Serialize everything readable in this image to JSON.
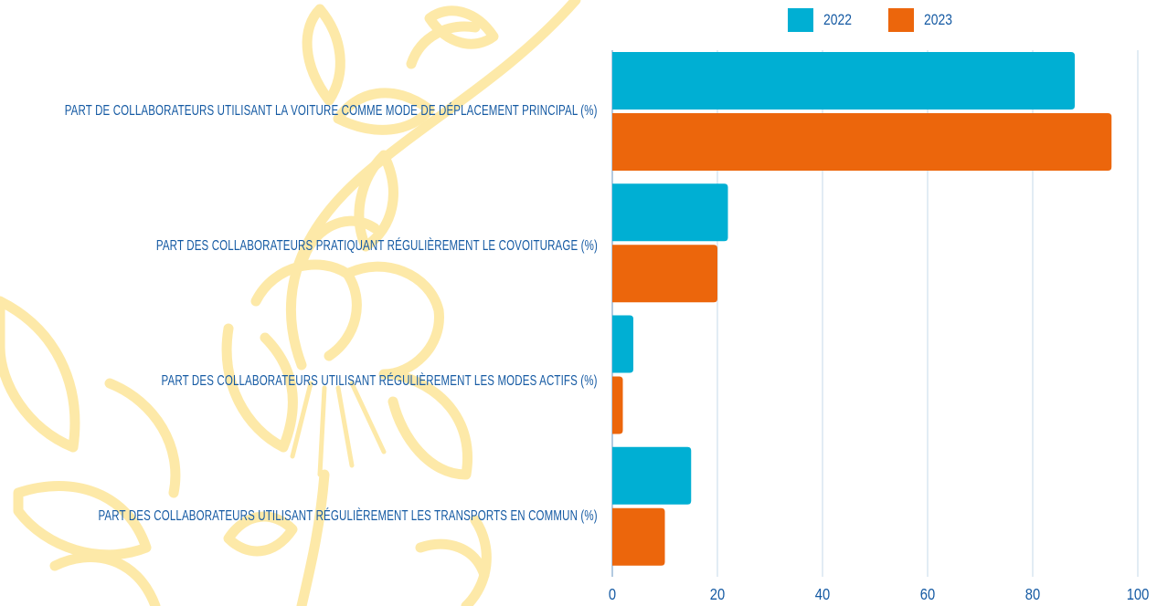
{
  "colors": {
    "series_2022": "#00afd3",
    "series_2023": "#ec660c",
    "text": "#155aa3",
    "grid": "#c6d9ea",
    "decor": "#fde9a8"
  },
  "chart_data": {
    "type": "bar",
    "orientation": "horizontal",
    "title": "",
    "xlabel": "",
    "ylabel": "",
    "xlim": [
      0,
      100
    ],
    "xticks": [
      "0",
      "20",
      "40",
      "60",
      "80",
      "100"
    ],
    "grid": true,
    "legend_position": "top-right",
    "categories": [
      "PART DE COLLABORATEURS UTILISANT LA VOITURE COMME MODE DE DÉPLACEMENT PRINCIPAL (%)",
      "PART DES COLLABORATEURS PRATIQUANT RÉGULIÈREMENT LE COVOITURAGE (%)",
      "PART DES COLLABORATEURS UTILISANT RÉGULIÈREMENT LES MODES ACTIFS (%)",
      "PART DES COLLABORATEURS UTILISANT RÉGULIÈREMENT LES TRANSPORTS EN COMMUN (%)"
    ],
    "series": [
      {
        "name": "2022",
        "color": "#00afd3",
        "values": [
          88,
          22,
          4,
          15
        ]
      },
      {
        "name": "2023",
        "color": "#ec660c",
        "values": [
          95,
          20,
          2,
          10
        ]
      }
    ]
  }
}
